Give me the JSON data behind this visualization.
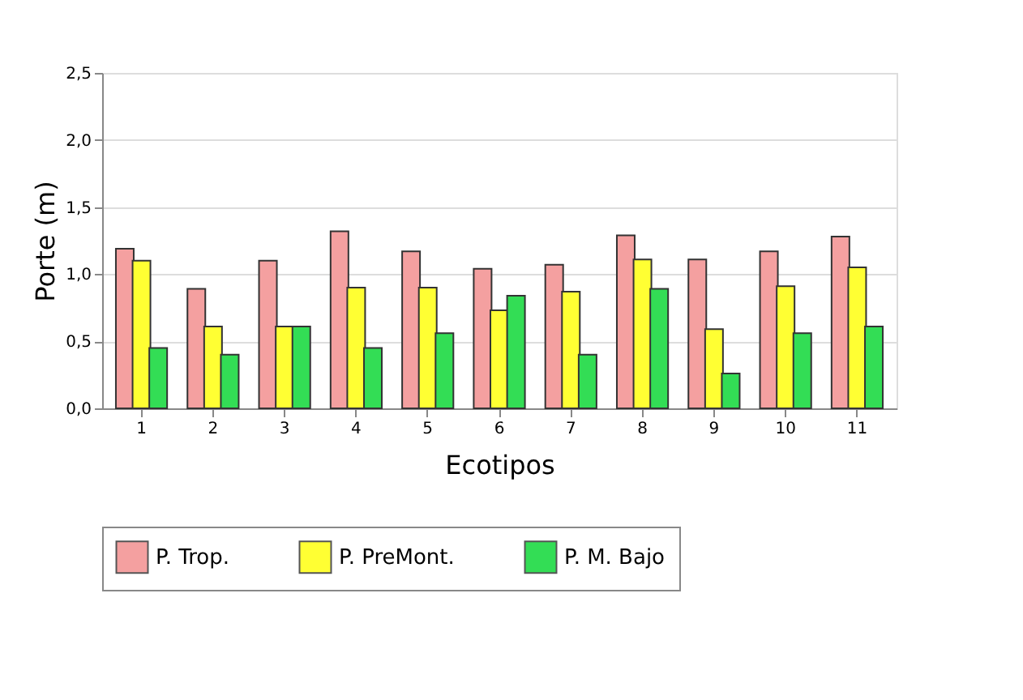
{
  "chart_data": {
    "type": "bar",
    "xlabel": "Ecotipos",
    "ylabel": "Porte (m)",
    "categories": [
      "1",
      "2",
      "3",
      "4",
      "5",
      "6",
      "7",
      "8",
      "9",
      "10",
      "11"
    ],
    "series": [
      {
        "name": "P. Trop.",
        "color": "#f4a0a0",
        "values": [
          1.19,
          0.89,
          1.1,
          1.32,
          1.17,
          1.04,
          1.07,
          1.29,
          1.11,
          1.17,
          1.28
        ]
      },
      {
        "name": "P. PreMont.",
        "color": "#ffff33",
        "values": [
          1.1,
          0.61,
          0.61,
          0.9,
          0.9,
          0.73,
          0.87,
          1.11,
          0.59,
          0.91,
          1.05
        ]
      },
      {
        "name": "P. M. Bajo",
        "color": "#33dd55",
        "values": [
          0.45,
          0.4,
          0.61,
          0.45,
          0.56,
          0.84,
          0.4,
          0.89,
          0.26,
          0.56,
          0.61
        ]
      }
    ],
    "ylim": [
      0,
      2.5
    ],
    "yticks": [
      {
        "value": 0,
        "label": "0,0"
      },
      {
        "value": 0.5,
        "label": "0,5"
      },
      {
        "value": 1,
        "label": "1,0"
      },
      {
        "value": 1.5,
        "label": "1,5"
      },
      {
        "value": 2,
        "label": "2,0"
      },
      {
        "value": 2.5,
        "label": "2,5"
      }
    ],
    "grid": "y",
    "legend": "bottom"
  }
}
